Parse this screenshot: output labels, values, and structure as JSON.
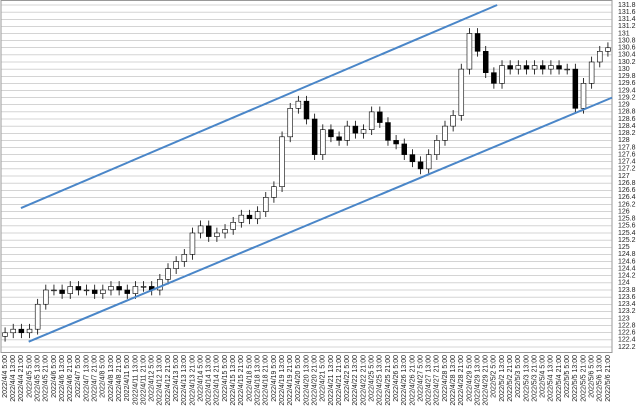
{
  "chart_data": {
    "type": "candlestick",
    "categories": [
      "2022/4/4 5:00",
      "2022/4/4 13:00",
      "2022/4/4 21:00",
      "2022/4/5 5:00",
      "2022/4/5 13:00",
      "2022/4/5 21:00",
      "2022/4/6 5:00",
      "2022/4/6 13:00",
      "2022/4/6 21:00",
      "2022/4/7 5:00",
      "2022/4/7 13:00",
      "2022/4/7 21:00",
      "2022/4/8 5:00",
      "2022/4/8 13:00",
      "2022/4/8 21:00",
      "2022/4/11 5:00",
      "2022/4/11 13:00",
      "2022/4/11 21:00",
      "2022/4/12 5:00",
      "2022/4/12 13:00",
      "2022/4/12 21:00",
      "2022/4/13 5:00",
      "2022/4/13 13:00",
      "2022/4/13 21:00",
      "2022/4/14 5:00",
      "2022/4/14 13:00",
      "2022/4/14 21:00",
      "2022/4/15 5:00",
      "2022/4/15 13:00",
      "2022/4/15 21:00",
      "2022/4/18 5:00",
      "2022/4/18 13:00",
      "2022/4/18 21:00",
      "2022/4/19 5:00",
      "2022/4/19 13:00",
      "2022/4/19 21:00",
      "2022/4/20 5:00",
      "2022/4/20 13:00",
      "2022/4/20 21:00",
      "2022/4/21 5:00",
      "2022/4/21 13:00",
      "2022/4/21 21:00",
      "2022/4/22 5:00",
      "2022/4/22 13:00",
      "2022/4/22 21:00",
      "2022/4/25 5:00",
      "2022/4/25 13:00",
      "2022/4/25 21:00",
      "2022/4/26 5:00",
      "2022/4/26 13:00",
      "2022/4/26 21:00",
      "2022/4/27 5:00",
      "2022/4/27 13:00",
      "2022/4/27 21:00",
      "2022/4/28 5:00",
      "2022/4/28 13:00",
      "2022/4/28 21:00",
      "2022/4/29 5:00",
      "2022/4/29 13:00",
      "2022/4/29 21:00",
      "2022/5/2 5:00",
      "2022/5/2 13:00",
      "2022/5/2 21:00",
      "2022/5/3 5:00",
      "2022/5/3 13:00",
      "2022/5/3 21:00",
      "2022/5/4 5:00",
      "2022/5/4 13:00",
      "2022/5/4 21:00",
      "2022/5/5 5:00",
      "2022/5/5 13:00",
      "2022/5/5 21:00",
      "2022/5/6 5:00",
      "2022/5/6 13:00",
      "2022/5/6 21:00"
    ],
    "open": [
      122.5,
      122.6,
      122.7,
      122.6,
      122.7,
      123.4,
      123.8,
      123.8,
      123.7,
      123.9,
      123.8,
      123.8,
      123.7,
      123.8,
      123.9,
      123.8,
      123.7,
      123.9,
      123.9,
      123.8,
      124.1,
      124.4,
      124.6,
      124.8,
      125.4,
      125.6,
      125.3,
      125.4,
      125.5,
      125.7,
      125.9,
      125.8,
      126.0,
      126.4,
      126.7,
      128.1,
      128.9,
      129.1,
      128.6,
      127.6,
      128.3,
      128.1,
      128.0,
      128.4,
      128.2,
      128.3,
      128.8,
      128.5,
      128.0,
      127.9,
      127.6,
      127.4,
      127.2,
      127.6,
      128.0,
      128.4,
      128.7,
      130.0,
      131.0,
      130.5,
      129.9,
      129.6,
      130.1,
      130.0,
      130.1,
      130.0,
      130.1,
      130.0,
      130.1,
      130.0,
      130.0,
      128.9,
      129.6,
      130.2,
      130.5
    ],
    "high": [
      122.75,
      122.85,
      122.85,
      122.85,
      123.55,
      123.95,
      123.95,
      123.95,
      124.05,
      124.05,
      123.95,
      123.95,
      123.95,
      124.05,
      124.05,
      123.95,
      124.05,
      124.05,
      124.05,
      124.25,
      124.55,
      124.75,
      124.95,
      125.55,
      125.75,
      125.75,
      125.55,
      125.65,
      125.85,
      126.05,
      126.05,
      126.15,
      126.55,
      126.85,
      128.25,
      129.05,
      129.25,
      129.25,
      128.75,
      128.45,
      128.45,
      128.25,
      128.55,
      128.55,
      128.45,
      128.95,
      128.95,
      128.65,
      128.15,
      128.05,
      127.75,
      127.55,
      127.75,
      128.15,
      128.55,
      128.85,
      130.15,
      131.15,
      131.15,
      130.65,
      130.05,
      130.25,
      130.25,
      130.25,
      130.25,
      130.25,
      130.25,
      130.25,
      130.25,
      130.15,
      130.15,
      129.75,
      130.35,
      130.65,
      130.75
    ],
    "low": [
      122.35,
      122.45,
      122.45,
      122.45,
      122.55,
      123.25,
      123.65,
      123.55,
      123.55,
      123.65,
      123.65,
      123.55,
      123.55,
      123.65,
      123.65,
      123.55,
      123.55,
      123.75,
      123.65,
      123.65,
      123.95,
      124.25,
      124.45,
      124.65,
      125.25,
      125.15,
      125.15,
      125.25,
      125.35,
      125.55,
      125.65,
      125.65,
      125.85,
      126.25,
      126.55,
      127.95,
      128.75,
      128.45,
      127.45,
      127.45,
      127.95,
      127.85,
      127.85,
      128.05,
      128.05,
      128.15,
      128.35,
      127.85,
      127.75,
      127.45,
      127.25,
      127.05,
      127.05,
      127.45,
      127.85,
      128.25,
      128.55,
      129.85,
      130.35,
      129.75,
      129.45,
      129.45,
      129.85,
      129.85,
      129.85,
      129.85,
      129.85,
      129.85,
      129.85,
      129.85,
      128.75,
      128.75,
      129.45,
      130.05,
      130.35
    ],
    "close": [
      122.6,
      122.7,
      122.6,
      122.7,
      123.4,
      123.8,
      123.8,
      123.7,
      123.9,
      123.8,
      123.8,
      123.7,
      123.8,
      123.9,
      123.8,
      123.7,
      123.9,
      123.9,
      123.8,
      124.1,
      124.4,
      124.6,
      124.8,
      125.4,
      125.6,
      125.3,
      125.4,
      125.5,
      125.7,
      125.9,
      125.8,
      126.0,
      126.4,
      126.7,
      128.1,
      128.9,
      129.1,
      128.6,
      127.6,
      128.3,
      128.1,
      128.0,
      128.4,
      128.2,
      128.3,
      128.8,
      128.5,
      128.0,
      127.9,
      127.6,
      127.4,
      127.2,
      127.6,
      128.0,
      128.4,
      128.7,
      130.0,
      131.0,
      130.5,
      129.9,
      129.6,
      130.1,
      130.0,
      130.1,
      130.0,
      130.1,
      130.0,
      130.1,
      130.0,
      130.0,
      128.9,
      129.6,
      130.2,
      130.5,
      130.6
    ],
    "up_color": "#ffffff",
    "down_color": "#000000",
    "ylim": [
      122.06,
      131.94
    ],
    "yticks": [
      122.2,
      122.4,
      122.6,
      122.8,
      123,
      123.2,
      123.4,
      123.6,
      123.8,
      124,
      124.2,
      124.4,
      124.6,
      124.8,
      125,
      125.2,
      125.4,
      125.6,
      125.8,
      126,
      126.2,
      126.4,
      126.6,
      126.8,
      127,
      127.2,
      127.4,
      127.6,
      127.8,
      128,
      128.2,
      128.4,
      128.6,
      128.8,
      129,
      129.2,
      129.4,
      129.6,
      129.8,
      130,
      130.2,
      130.4,
      130.6,
      130.8,
      131,
      131.2,
      131.4,
      131.6,
      131.8
    ],
    "grid": true,
    "trend_lines": [
      {
        "color": "#4a86c8",
        "x": [
          1.95,
          60.4
        ],
        "y": [
          126.1,
          131.8
        ]
      },
      {
        "color": "#4a86c8",
        "x": [
          2.9,
          74.5
        ],
        "y": [
          122.35,
          129.2
        ]
      }
    ]
  }
}
